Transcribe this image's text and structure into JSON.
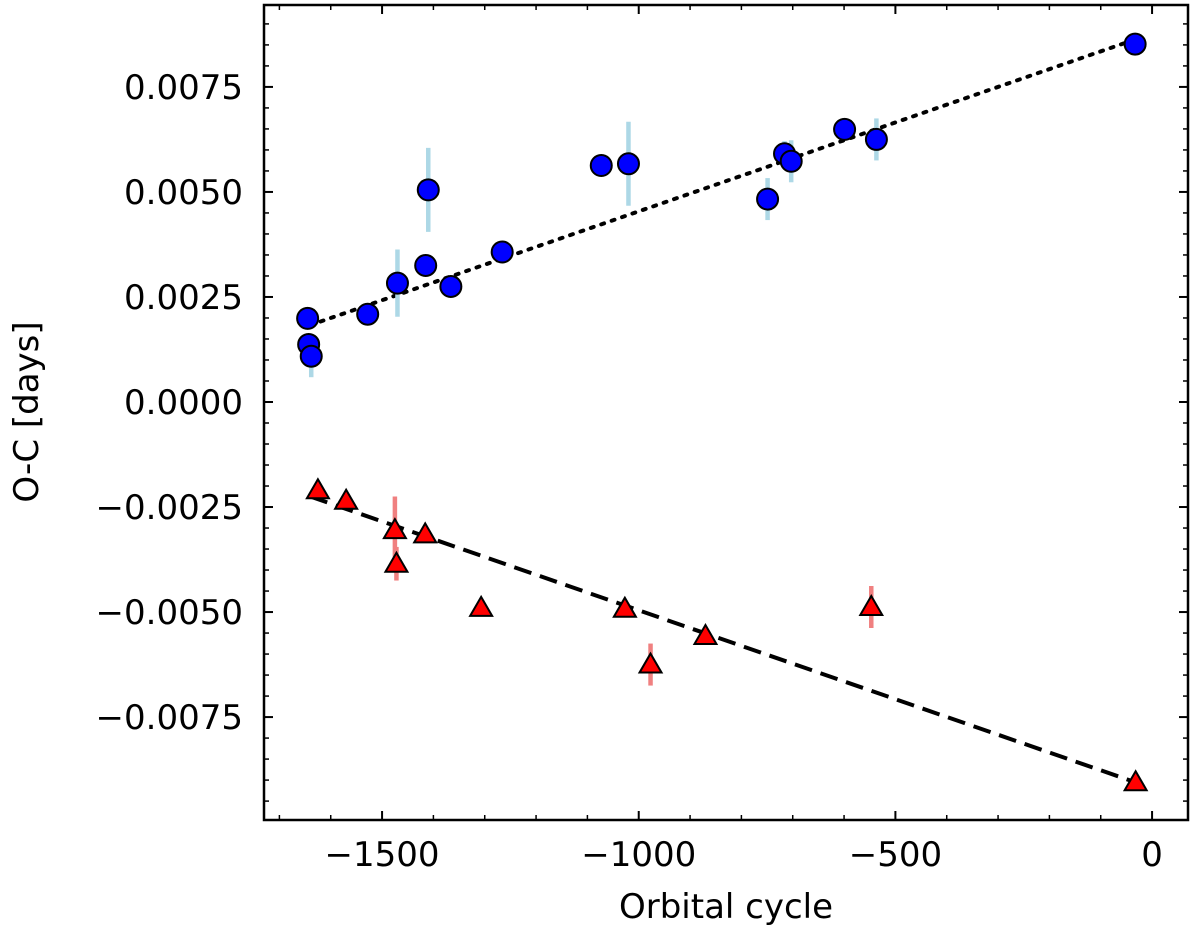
{
  "chart_data": {
    "type": "scatter",
    "title": "",
    "xlabel": "Orbital cycle",
    "ylabel": "O-C [days]",
    "xlim": [
      -1730,
      70
    ],
    "ylim": [
      -0.00995,
      0.00945
    ],
    "x_ticks": [
      -1500,
      -1000,
      -500,
      0
    ],
    "x_tick_labels": [
      "−1500",
      "−1000",
      "−500",
      "0"
    ],
    "y_ticks": [
      0.0075,
      0.005,
      0.0025,
      0.0,
      -0.0025,
      -0.005,
      -0.0075
    ],
    "y_tick_labels": [
      "0.0075",
      "0.0050",
      "0.0025",
      "0.0000",
      "−0.0025",
      "−0.0050",
      "−0.0075"
    ],
    "grid": false,
    "series": [
      {
        "name": "blue circles",
        "marker": "circle",
        "color": "#0000ff",
        "errorbar_color": "#add8e6",
        "x": [
          -1645,
          -1643,
          -1638,
          -1528,
          -1470,
          -1415,
          -1410,
          -1366,
          -1266,
          -1073,
          -1020,
          -749,
          -716,
          -703,
          -599,
          -537,
          -33
        ],
        "y": [
          0.00199,
          0.00137,
          0.00109,
          0.00209,
          0.00283,
          0.00325,
          0.00505,
          0.00275,
          0.00357,
          0.00563,
          0.00567,
          0.00483,
          0.00591,
          0.00573,
          0.00649,
          0.00625,
          0.00852
        ],
        "err": [
          0.0001,
          0.0002,
          0.0005,
          0.0001,
          0.0008,
          0.0001,
          0.001,
          0.0001,
          0.0001,
          0.0001,
          0.001,
          0.0005,
          0.0003,
          0.0005,
          0.0001,
          0.0005,
          0.0001
        ]
      },
      {
        "name": "red triangles",
        "marker": "triangle",
        "color": "#ff0000",
        "errorbar_color": "#f08080",
        "x": [
          -1625,
          -1570,
          -1475,
          -1472,
          -1416,
          -1307,
          -1027,
          -977,
          -870,
          -547,
          -32
        ],
        "y": [
          -0.0021,
          -0.00235,
          -0.00305,
          -0.00385,
          -0.00315,
          -0.0049,
          -0.00492,
          -0.00625,
          -0.00557,
          -0.00488,
          -0.00905
        ],
        "err": [
          0.0001,
          0.0001,
          0.0008,
          0.0004,
          0.0001,
          0.0001,
          0.0001,
          0.0005,
          0.0001,
          0.0005,
          0.0001
        ]
      }
    ],
    "fit_lines": [
      {
        "name": "blue fit",
        "style": "dotted",
        "color": "#000000",
        "x": [
          -1640,
          -33
        ],
        "y": [
          0.00183,
          0.00863
        ]
      },
      {
        "name": "red fit",
        "style": "dashed",
        "color": "#000000",
        "x": [
          -1640,
          -33
        ],
        "y": [
          -0.00225,
          -0.00905
        ]
      }
    ]
  }
}
